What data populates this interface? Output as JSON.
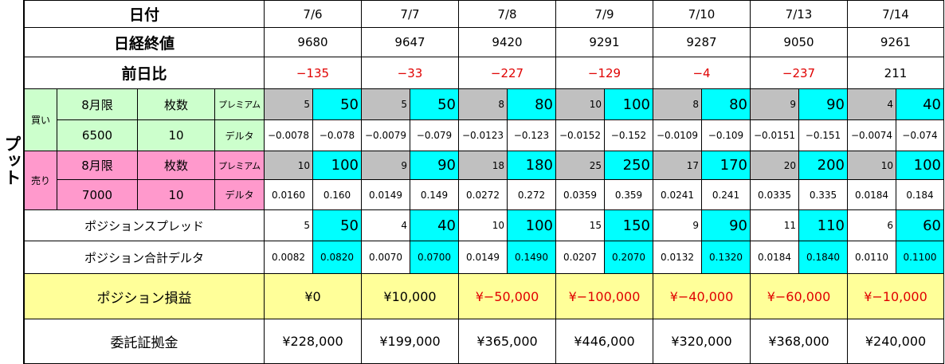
{
  "side_label": "プット",
  "labels": {
    "date": "日付",
    "close": "日経終値",
    "diff": "前日比",
    "buy": "買い",
    "sell": "売り",
    "month": "8月限",
    "count": "枚数",
    "premium": "プレミアム",
    "delta": "デルタ",
    "spread": "ポジションスプレッド",
    "pos_delta": "ポジション合計デルタ",
    "pnl": "ポジション損益",
    "margin": "委託証拠金"
  },
  "buy": {
    "strike": "6500",
    "qty": "10"
  },
  "sell": {
    "strike": "7000",
    "qty": "10"
  },
  "days": [
    {
      "date": "7/6",
      "close": "9680",
      "diff": "−135",
      "diff_neg": true,
      "buy_prem": "5",
      "buy_prem_x": "50",
      "buy_delta": "−0.0078",
      "buy_delta_x": "−0.078",
      "sell_prem": "10",
      "sell_prem_x": "100",
      "sell_delta": "0.0160",
      "sell_delta_x": "0.160",
      "spread": "5",
      "spread_x": "50",
      "pdelta": "0.0082",
      "pdelta_x": "0.0820",
      "pnl": "¥0",
      "pnl_neg": false,
      "margin": "¥228,000"
    },
    {
      "date": "7/7",
      "close": "9647",
      "diff": "−33",
      "diff_neg": true,
      "buy_prem": "5",
      "buy_prem_x": "50",
      "buy_delta": "−0.0079",
      "buy_delta_x": "−0.079",
      "sell_prem": "9",
      "sell_prem_x": "90",
      "sell_delta": "0.0149",
      "sell_delta_x": "0.149",
      "spread": "4",
      "spread_x": "40",
      "pdelta": "0.0070",
      "pdelta_x": "0.0700",
      "pnl": "¥10,000",
      "pnl_neg": false,
      "margin": "¥199,000"
    },
    {
      "date": "7/8",
      "close": "9420",
      "diff": "−227",
      "diff_neg": true,
      "buy_prem": "8",
      "buy_prem_x": "80",
      "buy_delta": "−0.0123",
      "buy_delta_x": "−0.123",
      "sell_prem": "18",
      "sell_prem_x": "180",
      "sell_delta": "0.0272",
      "sell_delta_x": "0.272",
      "spread": "10",
      "spread_x": "100",
      "pdelta": "0.0149",
      "pdelta_x": "0.1490",
      "pnl": "¥−50,000",
      "pnl_neg": true,
      "margin": "¥365,000"
    },
    {
      "date": "7/9",
      "close": "9291",
      "diff": "−129",
      "diff_neg": true,
      "buy_prem": "10",
      "buy_prem_x": "100",
      "buy_delta": "−0.0152",
      "buy_delta_x": "−0.152",
      "sell_prem": "25",
      "sell_prem_x": "250",
      "sell_delta": "0.0359",
      "sell_delta_x": "0.359",
      "spread": "15",
      "spread_x": "150",
      "pdelta": "0.0207",
      "pdelta_x": "0.2070",
      "pnl": "¥−100,000",
      "pnl_neg": true,
      "margin": "¥446,000"
    },
    {
      "date": "7/10",
      "close": "9287",
      "diff": "−4",
      "diff_neg": true,
      "buy_prem": "8",
      "buy_prem_x": "80",
      "buy_delta": "−0.0109",
      "buy_delta_x": "−0.109",
      "sell_prem": "17",
      "sell_prem_x": "170",
      "sell_delta": "0.0241",
      "sell_delta_x": "0.241",
      "spread": "9",
      "spread_x": "90",
      "pdelta": "0.0132",
      "pdelta_x": "0.1320",
      "pnl": "¥−40,000",
      "pnl_neg": true,
      "margin": "¥320,000"
    },
    {
      "date": "7/13",
      "close": "9050",
      "diff": "−237",
      "diff_neg": true,
      "buy_prem": "9",
      "buy_prem_x": "90",
      "buy_delta": "−0.0151",
      "buy_delta_x": "−0.151",
      "sell_prem": "20",
      "sell_prem_x": "200",
      "sell_delta": "0.0335",
      "sell_delta_x": "0.335",
      "spread": "11",
      "spread_x": "110",
      "pdelta": "0.0184",
      "pdelta_x": "0.1840",
      "pnl": "¥−60,000",
      "pnl_neg": true,
      "margin": "¥368,000"
    },
    {
      "date": "7/14",
      "close": "9261",
      "diff": "211",
      "diff_neg": false,
      "buy_prem": "4",
      "buy_prem_x": "40",
      "buy_delta": "−0.0074",
      "buy_delta_x": "−0.074",
      "sell_prem": "10",
      "sell_prem_x": "100",
      "sell_delta": "0.0184",
      "sell_delta_x": "0.184",
      "spread": "6",
      "spread_x": "60",
      "pdelta": "0.0110",
      "pdelta_x": "0.1100",
      "pnl": "¥−10,000",
      "pnl_neg": true,
      "margin": "¥240,000"
    }
  ]
}
